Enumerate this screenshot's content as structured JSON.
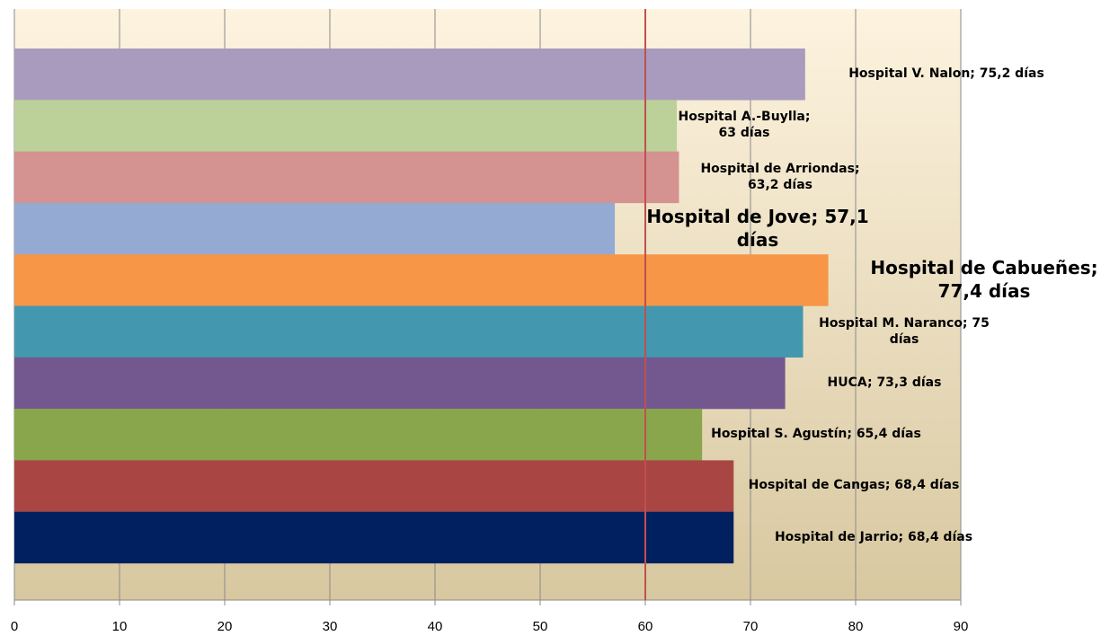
{
  "chart_data": {
    "type": "bar",
    "orientation": "horizontal",
    "categories": [
      "Hospital V. Nalon",
      "Hospital A.-Buylla",
      "Hospital de Arriondas",
      "Hospital de Jove",
      "Hospital de Cabueñes",
      "Hospital M. Naranco",
      "HUCA",
      "Hospital S. Agustín",
      "Hospital de Cangas",
      "Hospital de Jarrio"
    ],
    "values": [
      75.2,
      63,
      63.2,
      57.1,
      77.4,
      75,
      73.3,
      65.4,
      68.4,
      68.4
    ],
    "value_labels": [
      "Hospital V. Nalon; 75,2 días",
      "Hospital A.-Buylla; 63 días",
      "Hospital de Arriondas; 63,2 días",
      "Hospital de Jove; 57,1 días",
      "Hospital de Cabueñes; 77,4 días",
      "Hospital M. Naranco; 75 días",
      "HUCA; 73,3 días",
      "Hospital S. Agustín; 65,4 días",
      "Hospital de Cangas; 68,4 días",
      "Hospital de Jarrio; 68,4 días"
    ],
    "colors": [
      "#a99bbd",
      "#bcd09a",
      "#d49290",
      "#95aad3",
      "#f69646",
      "#4398b0",
      "#72588f",
      "#8aa64d",
      "#a94644",
      "#002060"
    ],
    "xlim": [
      0,
      90
    ],
    "xticks": [
      0,
      10,
      20,
      30,
      40,
      50,
      60,
      70,
      80,
      90
    ],
    "grid": true,
    "reference_line": 60,
    "reference_color": "#c0504d"
  }
}
